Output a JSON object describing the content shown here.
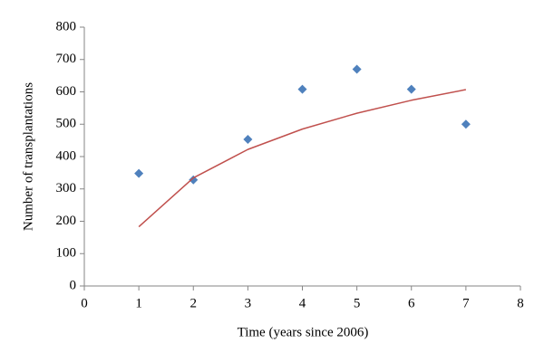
{
  "chart_data": {
    "type": "scatter",
    "xlabel": "Time (years since 2006)",
    "ylabel": "Number of transplantations",
    "x": [
      1,
      2,
      3,
      4,
      5,
      6,
      7
    ],
    "series": [
      {
        "type": "scatter",
        "marker": "diamond",
        "color": "#4f81bd",
        "values": [
          348,
          328,
          453,
          608,
          670,
          608,
          500
        ]
      },
      {
        "type": "line",
        "color": "#c0504d",
        "values": [
          183,
          334,
          422,
          485,
          534,
          574,
          607
        ]
      }
    ],
    "xlim": [
      0,
      8
    ],
    "xticks": [
      0,
      1,
      2,
      3,
      4,
      5,
      6,
      7,
      8
    ],
    "ylim": [
      0,
      800
    ],
    "yticks": [
      0,
      100,
      200,
      300,
      400,
      500,
      600,
      700,
      800
    ],
    "grid": false
  }
}
